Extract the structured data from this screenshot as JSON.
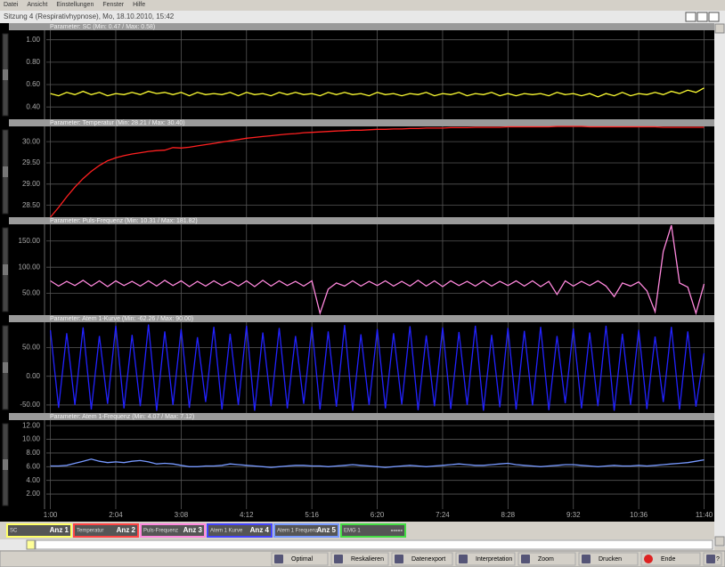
{
  "menu": [
    "Datei",
    "Ansicht",
    "Einstellungen",
    "Fenster",
    "Hilfe"
  ],
  "window_title": "Sitzung 4 (Respirativhypnose), Mo, 18.10.2010, 15:42",
  "chart_data": [
    {
      "type": "line",
      "title": "Parameter: SC (Min: 0.47 / Max: 0.58)",
      "color": "#ffff33",
      "grid": true,
      "ylim": [
        0.29,
        1.085
      ],
      "yticks": [
        {
          "value": 1.0,
          "label": "1.00"
        },
        {
          "value": 0.8,
          "label": "0.80"
        },
        {
          "value": 0.6,
          "label": "0.60"
        },
        {
          "value": 0.4,
          "label": "0.40"
        }
      ],
      "values": [
        0.52,
        0.5,
        0.53,
        0.51,
        0.54,
        0.51,
        0.53,
        0.5,
        0.52,
        0.51,
        0.53,
        0.51,
        0.54,
        0.52,
        0.53,
        0.51,
        0.53,
        0.5,
        0.53,
        0.51,
        0.52,
        0.51,
        0.53,
        0.5,
        0.53,
        0.51,
        0.52,
        0.5,
        0.53,
        0.51,
        0.53,
        0.51,
        0.52,
        0.5,
        0.53,
        0.51,
        0.53,
        0.51,
        0.52,
        0.5,
        0.53,
        0.51,
        0.52,
        0.5,
        0.52,
        0.51,
        0.53,
        0.5,
        0.52,
        0.51,
        0.53,
        0.5,
        0.52,
        0.51,
        0.53,
        0.5,
        0.52,
        0.5,
        0.52,
        0.51,
        0.52,
        0.5,
        0.53,
        0.51,
        0.52,
        0.5,
        0.52,
        0.49,
        0.52,
        0.5,
        0.53,
        0.5,
        0.52,
        0.51,
        0.53,
        0.51,
        0.54,
        0.52,
        0.55,
        0.53,
        0.57
      ]
    },
    {
      "type": "line",
      "title": "Parameter: Temperatur (Min: 28.21 / Max: 30.40)",
      "color": "#ff2020",
      "grid": true,
      "ylim": [
        28.22,
        30.36
      ],
      "yticks": [
        {
          "value": 30,
          "label": "30.00"
        },
        {
          "value": 29.5,
          "label": "29.50"
        },
        {
          "value": 29,
          "label": "29.00"
        },
        {
          "value": 28.5,
          "label": "28.50"
        }
      ],
      "values": [
        28.22,
        28.45,
        28.7,
        28.93,
        29.13,
        29.3,
        29.44,
        29.55,
        29.62,
        29.67,
        29.71,
        29.74,
        29.77,
        29.79,
        29.8,
        29.86,
        29.85,
        29.87,
        29.9,
        29.93,
        29.96,
        29.99,
        30.02,
        30.05,
        30.08,
        30.1,
        30.12,
        30.14,
        30.16,
        30.18,
        30.19,
        30.21,
        30.22,
        30.23,
        30.24,
        30.25,
        30.26,
        30.27,
        30.27,
        30.28,
        30.29,
        30.29,
        30.3,
        30.3,
        30.31,
        30.31,
        30.32,
        30.32,
        30.32,
        30.33,
        30.33,
        30.33,
        30.34,
        30.34,
        30.34,
        30.34,
        30.35,
        30.35,
        30.35,
        30.35,
        30.35,
        30.35,
        30.36,
        30.36,
        30.36,
        30.36,
        30.35,
        30.35,
        30.35,
        30.35,
        30.35,
        30.35,
        30.35,
        30.35,
        30.35,
        30.34,
        30.34,
        30.34,
        30.34,
        30.34,
        30.34
      ]
    },
    {
      "type": "line",
      "title": "Parameter: Puls-Frequenz (Min: 10.31 / Max: 181.82)",
      "color": "#ff88dd",
      "grid": true,
      "ylim": [
        8.6,
        181.9
      ],
      "yticks": [
        {
          "value": 150,
          "label": "150.00"
        },
        {
          "value": 100,
          "label": "100.00"
        },
        {
          "value": 50,
          "label": "50.00"
        }
      ],
      "values": [
        74,
        64,
        73,
        65,
        75,
        64,
        74,
        63,
        74,
        65,
        73,
        64,
        74,
        64,
        75,
        65,
        74,
        63,
        73,
        64,
        74,
        65,
        73,
        64,
        74,
        63,
        75,
        64,
        74,
        65,
        73,
        64,
        74,
        12,
        58,
        70,
        64,
        74,
        64,
        73,
        65,
        74,
        64,
        73,
        64,
        75,
        64,
        74,
        63,
        74,
        65,
        73,
        64,
        74,
        64,
        73,
        65,
        74,
        64,
        74,
        63,
        73,
        48,
        74,
        64,
        73,
        65,
        74,
        64,
        44,
        70,
        64,
        72,
        55,
        15,
        130,
        180,
        70,
        62,
        12,
        68
      ]
    },
    {
      "type": "line",
      "title": "Parameter: Atem 1-Kurve (Min: -62.26 / Max: 90.00)",
      "color": "#2222ff",
      "grid": true,
      "ylim": [
        -64,
        94
      ],
      "yticks": [
        {
          "value": 50,
          "label": "50.00"
        },
        {
          "value": 0,
          "label": "0.00"
        },
        {
          "value": -50,
          "label": "-50.00"
        }
      ],
      "values": [
        80,
        -55,
        75,
        -50,
        85,
        -58,
        70,
        -48,
        88,
        -56,
        72,
        -52,
        90,
        -60,
        78,
        -50,
        82,
        -55,
        68,
        -45,
        86,
        -58,
        74,
        -50,
        88,
        -60,
        76,
        -52,
        84,
        -56,
        70,
        -48,
        86,
        -58,
        78,
        -53,
        89,
        -60,
        73,
        -50,
        82,
        -56,
        75,
        -49,
        87,
        -59,
        71,
        -52,
        85,
        -57,
        77,
        -50,
        88,
        -60,
        72,
        -54,
        84,
        -58,
        79,
        -51,
        86,
        -59,
        70,
        -47,
        83,
        -56,
        76,
        -52,
        88,
        -60,
        74,
        -50,
        81,
        -57,
        69,
        -45,
        86,
        -58,
        78,
        -53,
        40
      ]
    },
    {
      "type": "line",
      "title": "Parameter: Atem 1-Frequenz (Min: 4.07 / Max: 7.12)",
      "color": "#7799ff",
      "grid": true,
      "ylim": [
        -0.2,
        12.8
      ],
      "yticks": [
        {
          "value": 12,
          "label": "12.00"
        },
        {
          "value": 10,
          "label": "10.00"
        },
        {
          "value": 8,
          "label": "8.00"
        },
        {
          "value": 6,
          "label": "6.00"
        },
        {
          "value": 4,
          "label": "4.00"
        },
        {
          "value": 2,
          "label": "2.00"
        }
      ],
      "xlim": [
        56,
        710
      ],
      "xticks": [
        {
          "value": 60,
          "label": "1:00"
        },
        {
          "value": 124,
          "label": "2:04"
        },
        {
          "value": 188,
          "label": "3:08"
        },
        {
          "value": 252,
          "label": "4:12"
        },
        {
          "value": 316,
          "label": "5:16"
        },
        {
          "value": 380,
          "label": "6:20"
        },
        {
          "value": 444,
          "label": "7:24"
        },
        {
          "value": 508,
          "label": "8:28"
        },
        {
          "value": 572,
          "label": "9:32"
        },
        {
          "value": 636,
          "label": "10:36"
        },
        {
          "value": 700,
          "label": "11:40"
        }
      ],
      "x": [
        60,
        68,
        76,
        84,
        92,
        100,
        108,
        116,
        124,
        132,
        140,
        148,
        156,
        164,
        172,
        180,
        188,
        196,
        204,
        212,
        220,
        228,
        236,
        244,
        252,
        260,
        268,
        276,
        284,
        292,
        300,
        308,
        316,
        324,
        332,
        340,
        348,
        356,
        364,
        372,
        380,
        388,
        396,
        404,
        412,
        420,
        428,
        436,
        444,
        452,
        460,
        468,
        476,
        484,
        492,
        500,
        508,
        516,
        524,
        532,
        540,
        548,
        556,
        564,
        572,
        580,
        588,
        596,
        604,
        612,
        620,
        628,
        636,
        644,
        652,
        660,
        668,
        676,
        684,
        692,
        700
      ],
      "values": [
        6.1,
        6.1,
        6.2,
        6.5,
        6.8,
        7.1,
        6.8,
        6.6,
        6.7,
        6.6,
        6.8,
        6.9,
        6.7,
        6.4,
        6.5,
        6.4,
        6.2,
        6.0,
        6.0,
        6.1,
        6.1,
        6.2,
        6.4,
        6.3,
        6.2,
        6.1,
        6.0,
        5.9,
        6.0,
        6.1,
        6.2,
        6.2,
        6.1,
        6.1,
        6.0,
        6.1,
        6.2,
        6.3,
        6.2,
        6.1,
        6.0,
        5.9,
        6.0,
        6.1,
        6.2,
        6.1,
        6.0,
        6.1,
        6.2,
        6.3,
        6.4,
        6.3,
        6.2,
        6.2,
        6.3,
        6.4,
        6.5,
        6.3,
        6.2,
        6.1,
        6.0,
        6.1,
        6.2,
        6.3,
        6.3,
        6.2,
        6.1,
        6.0,
        6.1,
        6.2,
        6.1,
        6.1,
        6.2,
        6.1,
        6.2,
        6.3,
        6.4,
        6.5,
        6.6,
        6.8,
        7.0
      ]
    }
  ],
  "legend": [
    {
      "label": "SC",
      "display": "Anz 1",
      "color": "#ffff66"
    },
    {
      "label": "Temperatur",
      "display": "Anz 2",
      "color": "#ff4444"
    },
    {
      "label": "Puls-Frequenz",
      "display": "Anz 3",
      "color": "#ff88dd"
    },
    {
      "label": "Atem 1 Kurve",
      "display": "Anz 4",
      "color": "#4444ff"
    },
    {
      "label": "Atem 1 Frequenz",
      "display": "Anz 5",
      "color": "#7799ff"
    },
    {
      "label": "EMG 1",
      "display": "-----",
      "color": "#44dd44"
    }
  ],
  "toolbar": [
    "Optimal",
    "Reskalieren",
    "Datenexport",
    "Interpretation",
    "Zoom",
    "Drucken",
    "Ende",
    "?"
  ]
}
